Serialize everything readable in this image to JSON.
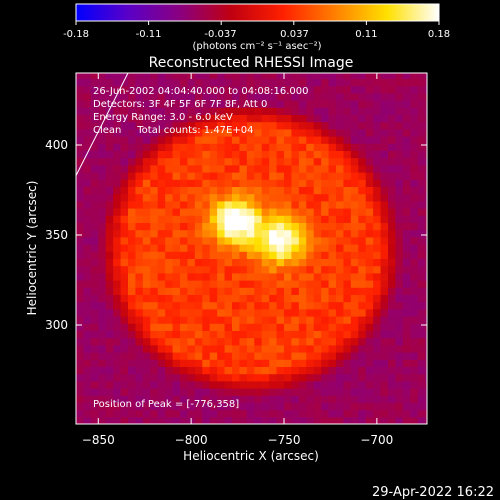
{
  "colorbar": {
    "ticks": [
      "-0.18",
      "-0.11",
      "-0.037",
      "0.037",
      "0.11",
      "0.18"
    ],
    "unit_label": "(photons cm⁻² s⁻¹ asec⁻²)",
    "range": [
      -0.18,
      0.18
    ],
    "colormap": [
      "#0000ff",
      "#5a00c8",
      "#8a0080",
      "#c00010",
      "#ff2000",
      "#ff8000",
      "#ffe000",
      "#ffffff"
    ]
  },
  "info": {
    "time_range": "26-Jun-2002 04:04:40.000 to 04:08:16.000",
    "detectors": "Detectors: 3F 4F 5F 6F 7F 8F, Att 0",
    "energy": "Energy Range: 3.0 - 6.0 keV",
    "method": "Clean     Total counts: 1.47E+04",
    "peak": "Position of Peak = [-776,358]"
  },
  "footer": {
    "timestamp": "29-Apr-2022 16:22"
  },
  "chart_data": {
    "type": "heatmap",
    "title": "Reconstructed RHESSI Image",
    "xlabel": "Heliocentric X (arcsec)",
    "ylabel": "Heliocentric Y (arcsec)",
    "xlim": [
      -862,
      -673
    ],
    "ylim": [
      245,
      440
    ],
    "xticks": [
      -850,
      -800,
      -750,
      -700
    ],
    "yticks": [
      300,
      350,
      400
    ],
    "xtick_labels": [
      "−850",
      "−800",
      "−750",
      "−700"
    ],
    "ytick_labels": [
      "300",
      "350",
      "400"
    ],
    "units": "photons cm-2 s-1 asec-2",
    "peak_position": [
      -776,
      358
    ],
    "limb_line": [
      [
        -862,
        383
      ],
      [
        -834,
        440
      ]
    ],
    "background_value": -0.06,
    "diffuse_disk": {
      "center": [
        -768,
        342
      ],
      "radius": 82,
      "value": 0.04
    },
    "sources": [
      {
        "x": -776,
        "y": 358,
        "value": 0.18
      },
      {
        "x": -752,
        "y": 347,
        "value": 0.15
      }
    ]
  }
}
